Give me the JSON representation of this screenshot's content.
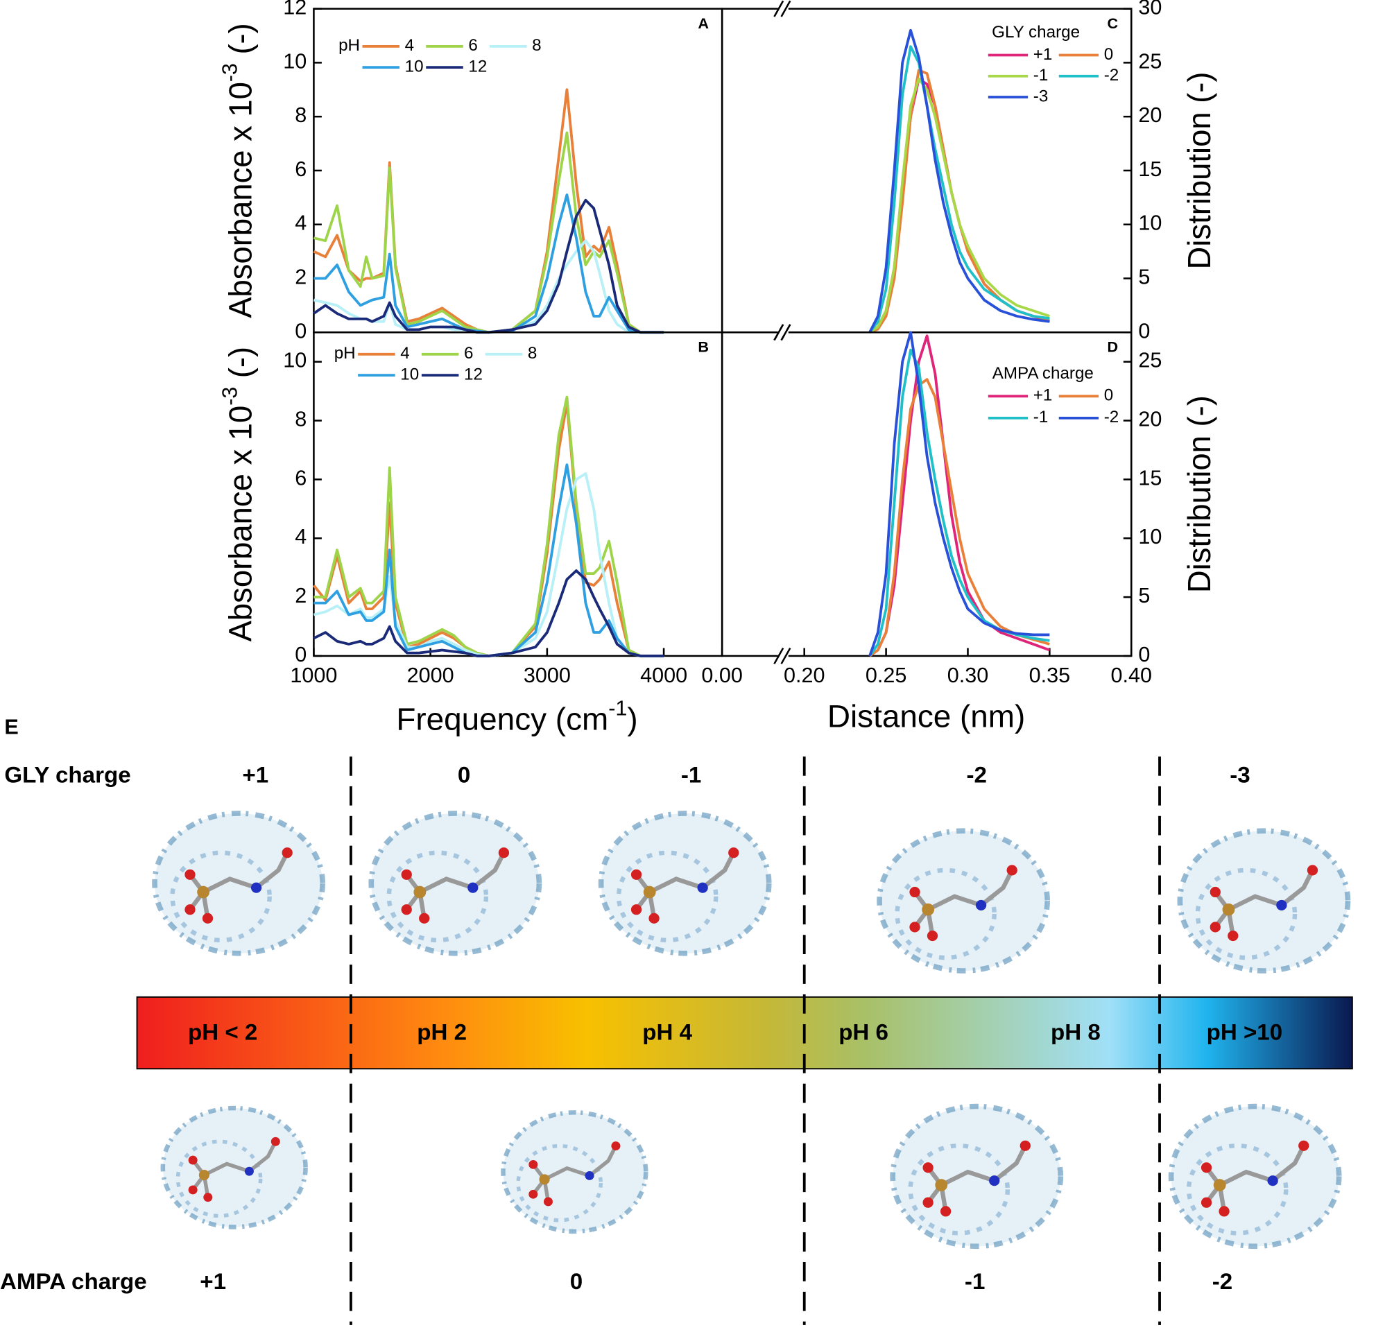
{
  "chart_data": [
    {
      "type": "line",
      "panel": "A",
      "x": [
        1000,
        1100,
        1200,
        1300,
        1400,
        1450,
        1500,
        1600,
        1650,
        1700,
        1800,
        1900,
        2000,
        2100,
        2200,
        2300,
        2400,
        2500,
        2700,
        2900,
        3000,
        3100,
        3170,
        3250,
        3330,
        3400,
        3450,
        3530,
        3600,
        3700,
        3800,
        4000
      ],
      "xlim": [
        1000,
        4500
      ],
      "ylim": [
        0,
        12
      ],
      "yticks": [
        0,
        2,
        4,
        6,
        8,
        10,
        12
      ],
      "ylabel": {
        "text": "Absorbance x 10",
        "sup": "-3",
        "tail": " (-)"
      },
      "legend_title": "pH",
      "series": [
        {
          "name": "4",
          "color": "#e8803a",
          "values": [
            3.0,
            2.8,
            3.6,
            2.3,
            1.9,
            2.0,
            2.0,
            2.2,
            6.3,
            2.5,
            0.4,
            0.5,
            0.7,
            0.9,
            0.6,
            0.3,
            0.1,
            0.0,
            0.1,
            0.8,
            3.0,
            6.5,
            9.0,
            5.5,
            2.8,
            3.2,
            3.0,
            3.9,
            2.5,
            0.3,
            0.0,
            0.0
          ]
        },
        {
          "name": "6",
          "color": "#9ed44a",
          "values": [
            3.5,
            3.4,
            4.7,
            2.3,
            1.7,
            2.8,
            2.0,
            2.1,
            6.1,
            2.4,
            0.3,
            0.4,
            0.6,
            0.8,
            0.5,
            0.2,
            0.1,
            0.0,
            0.1,
            0.8,
            2.8,
            5.6,
            7.4,
            4.3,
            2.5,
            3.0,
            2.8,
            3.4,
            2.2,
            0.3,
            0.0,
            0.0
          ]
        },
        {
          "name": "8",
          "color": "#b8f0f8",
          "values": [
            1.2,
            1.1,
            1.0,
            0.7,
            0.5,
            0.5,
            0.4,
            0.4,
            1.1,
            0.3,
            0.1,
            0.1,
            0.2,
            0.2,
            0.1,
            0.1,
            0,
            0,
            0.1,
            0.4,
            1.0,
            2.0,
            2.5,
            3.0,
            3.4,
            3.0,
            2.2,
            0.8,
            0.3,
            0.0,
            0.0,
            0.0
          ]
        },
        {
          "name": "10",
          "color": "#2e9fe0",
          "values": [
            2.0,
            2.0,
            2.5,
            1.5,
            1.0,
            1.1,
            1.2,
            1.3,
            2.9,
            1.0,
            0.2,
            0.3,
            0.4,
            0.5,
            0.3,
            0.1,
            0.05,
            0,
            0.05,
            0.6,
            2.0,
            4.0,
            5.1,
            3.5,
            1.5,
            0.6,
            0.6,
            1.3,
            0.8,
            0.1,
            0,
            0
          ]
        },
        {
          "name": "12",
          "color": "#1a2a78",
          "values": [
            0.7,
            1.0,
            0.7,
            0.5,
            0.5,
            0.5,
            0.4,
            0.6,
            1.1,
            0.6,
            0.1,
            0.1,
            0.2,
            0.2,
            0.2,
            0.1,
            0,
            0,
            0.1,
            0.3,
            0.8,
            1.8,
            3.0,
            4.3,
            4.9,
            4.6,
            3.8,
            2.5,
            1.0,
            0.2,
            0,
            0
          ]
        }
      ]
    },
    {
      "type": "line",
      "panel": "B",
      "x": [
        1000,
        1100,
        1200,
        1300,
        1400,
        1450,
        1500,
        1600,
        1650,
        1700,
        1800,
        1900,
        2000,
        2100,
        2200,
        2300,
        2400,
        2500,
        2700,
        2900,
        3000,
        3100,
        3170,
        3250,
        3330,
        3400,
        3450,
        3530,
        3600,
        3700,
        3800,
        4000
      ],
      "xlim": [
        1000,
        4500
      ],
      "xticks": [
        1000,
        2000,
        3000,
        4000
      ],
      "ylim": [
        0,
        11
      ],
      "yticks": [
        0,
        2,
        4,
        6,
        8,
        10
      ],
      "xlabel": {
        "text": "Frequency (cm",
        "sup": "-1",
        "tail": ")"
      },
      "ylabel": {
        "text": "Absorbance x 10",
        "sup": "-3",
        "tail": " (-)"
      },
      "legend_title": "pH",
      "series": [
        {
          "name": "4",
          "color": "#e8803a",
          "values": [
            2.4,
            1.9,
            3.4,
            1.8,
            2.2,
            1.6,
            1.6,
            2.0,
            5.2,
            1.8,
            0.3,
            0.4,
            0.6,
            0.8,
            0.6,
            0.3,
            0.1,
            0,
            0.1,
            1.0,
            3.5,
            7.0,
            8.6,
            5.0,
            2.5,
            2.4,
            2.6,
            3.2,
            1.8,
            0.2,
            0,
            0
          ]
        },
        {
          "name": "6",
          "color": "#9ed44a",
          "values": [
            2.0,
            2.0,
            3.6,
            2.0,
            2.3,
            1.8,
            1.8,
            2.2,
            6.4,
            2.0,
            0.4,
            0.5,
            0.7,
            0.9,
            0.7,
            0.3,
            0.1,
            0,
            0.1,
            1.1,
            3.8,
            7.5,
            8.8,
            5.2,
            2.8,
            2.8,
            3.0,
            3.9,
            2.5,
            0.2,
            0,
            0
          ]
        },
        {
          "name": "8",
          "color": "#b8f0f8",
          "values": [
            1.4,
            1.5,
            1.7,
            1.4,
            1.6,
            1.3,
            1.3,
            1.6,
            2.7,
            1.2,
            0.3,
            0.3,
            0.5,
            0.6,
            0.4,
            0.2,
            0.05,
            0,
            0.1,
            0.6,
            1.5,
            3.5,
            5.0,
            6.0,
            6.2,
            5.0,
            3.5,
            1.8,
            0.6,
            0.1,
            0,
            0
          ]
        },
        {
          "name": "10",
          "color": "#2e9fe0",
          "values": [
            1.8,
            1.8,
            2.2,
            1.4,
            1.5,
            1.2,
            1.2,
            1.5,
            3.6,
            1.0,
            0.2,
            0.3,
            0.4,
            0.5,
            0.3,
            0.1,
            0,
            0,
            0.1,
            0.8,
            2.5,
            5.0,
            6.5,
            4.5,
            1.8,
            0.8,
            0.8,
            1.2,
            0.6,
            0.1,
            0,
            0
          ]
        },
        {
          "name": "12",
          "color": "#1a2a78",
          "values": [
            0.6,
            0.8,
            0.5,
            0.4,
            0.5,
            0.4,
            0.4,
            0.6,
            1.0,
            0.5,
            0.1,
            0.1,
            0.15,
            0.2,
            0.15,
            0.1,
            0,
            0,
            0.1,
            0.3,
            0.8,
            1.8,
            2.6,
            2.9,
            2.6,
            2.0,
            1.6,
            1.0,
            0.4,
            0.1,
            0,
            0
          ]
        }
      ]
    },
    {
      "type": "line",
      "panel": "C",
      "yaxis_side": "right",
      "xbreak": 0.2,
      "x": [
        0.24,
        0.245,
        0.25,
        0.255,
        0.26,
        0.265,
        0.27,
        0.275,
        0.28,
        0.285,
        0.29,
        0.295,
        0.3,
        0.31,
        0.32,
        0.33,
        0.34,
        0.35
      ],
      "xlim": [
        0,
        0.4
      ],
      "ylim": [
        0,
        30
      ],
      "yticks": [
        0,
        5,
        10,
        15,
        20,
        25,
        30
      ],
      "ylabel": {
        "text": "Distribution (-)"
      },
      "legend_title": "GLY charge",
      "series": [
        {
          "name": "+1",
          "color": "#e0247a",
          "values": [
            0,
            0.5,
            2,
            6,
            13,
            20,
            23.5,
            23,
            21,
            17,
            13,
            10,
            7.5,
            4.5,
            3,
            2,
            1.5,
            1.0
          ]
        },
        {
          "name": "0",
          "color": "#e8803a",
          "values": [
            0,
            0.3,
            1.5,
            5,
            12,
            20,
            24.3,
            24,
            21,
            17,
            13,
            10,
            7.5,
            4.5,
            3,
            2,
            1.5,
            1.2
          ]
        },
        {
          "name": "-1",
          "color": "#a8d848",
          "values": [
            0,
            0.5,
            2,
            6,
            14,
            21,
            23.5,
            22.5,
            20,
            16.5,
            13,
            10,
            8,
            5,
            3.5,
            2.5,
            2,
            1.5
          ]
        },
        {
          "name": "-2",
          "color": "#20c0c8",
          "values": [
            0,
            1,
            4,
            12,
            22,
            26.5,
            25,
            21,
            17,
            13.5,
            10,
            7.5,
            6,
            4,
            3,
            2,
            1.5,
            1.3
          ]
        },
        {
          "name": "-3",
          "color": "#2850d8",
          "values": [
            0,
            1.5,
            6,
            15,
            25,
            28,
            25.5,
            21,
            16,
            12,
            9,
            6.5,
            5,
            3,
            2,
            1.5,
            1.2,
            1.0
          ]
        }
      ]
    },
    {
      "type": "line",
      "panel": "D",
      "yaxis_side": "right",
      "xbreak": 0.2,
      "x": [
        0.24,
        0.245,
        0.25,
        0.255,
        0.26,
        0.265,
        0.27,
        0.275,
        0.28,
        0.285,
        0.29,
        0.295,
        0.3,
        0.31,
        0.32,
        0.33,
        0.34,
        0.35
      ],
      "xlim": [
        0,
        0.4
      ],
      "xticks": [
        {
          "value": 0,
          "label": "0.00"
        },
        {
          "value": 0.2,
          "label": "0.20"
        },
        {
          "value": 0.25,
          "label": "0.25"
        },
        {
          "value": 0.3,
          "label": "0.30"
        },
        {
          "value": 0.35,
          "label": "0.35"
        },
        {
          "value": 0.4,
          "label": "0.40"
        }
      ],
      "ylim": [
        0,
        27.5
      ],
      "yticks": [
        0,
        5,
        10,
        15,
        20,
        25
      ],
      "xlabel": {
        "text": "Distance (nm)"
      },
      "ylabel": {
        "text": "Distribution (-)"
      },
      "legend_title": "AMPA charge",
      "series": [
        {
          "name": "+1",
          "color": "#e0247a",
          "values": [
            0,
            0.5,
            2,
            6,
            13,
            20,
            25,
            27.2,
            24,
            18,
            12,
            8,
            5.5,
            3,
            2,
            1.5,
            1,
            0.5
          ]
        },
        {
          "name": "0",
          "color": "#e8803a",
          "values": [
            0,
            0.5,
            2,
            7,
            15,
            21,
            23,
            23.5,
            22,
            18,
            14,
            10,
            7,
            4,
            2.5,
            1.8,
            1.4,
            1.0
          ]
        },
        {
          "name": "-1",
          "color": "#20c0c8",
          "values": [
            0,
            1,
            4,
            13,
            22,
            26,
            24.5,
            19,
            15,
            11.5,
            8.5,
            6.5,
            5,
            3,
            2.2,
            1.8,
            1.5,
            1.3
          ]
        },
        {
          "name": "-2",
          "color": "#2850d8",
          "values": [
            0,
            2,
            7,
            18,
            25,
            27.5,
            23,
            17,
            13,
            10,
            7.5,
            5.5,
            4,
            2.8,
            2.2,
            1.9,
            1.8,
            1.8
          ]
        }
      ]
    }
  ],
  "panel_e": {
    "label": "E",
    "gly_title": "GLY charge",
    "gly_charges": [
      "+1",
      "0",
      "-1",
      "-2",
      "-3"
    ],
    "ph_labels": [
      "pH < 2",
      "pH 2",
      "pH 4",
      "pH 6",
      "pH 8",
      "pH >10"
    ],
    "ampa_title": "AMPA charge",
    "ampa_charges": [
      "+1",
      "0",
      "-1",
      "-2"
    ]
  }
}
